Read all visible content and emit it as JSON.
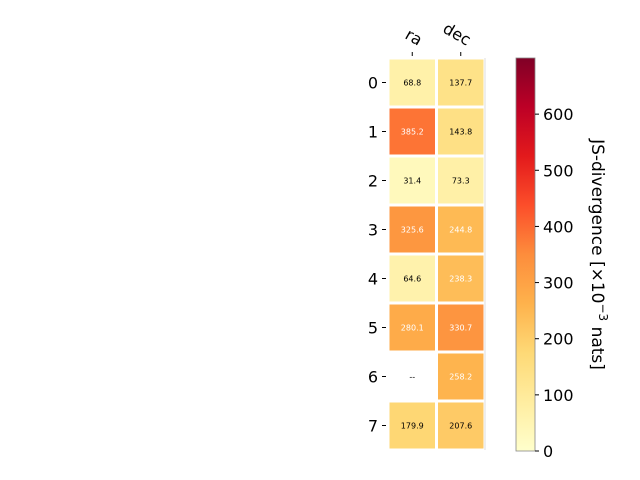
{
  "chart_data": {
    "type": "heatmap",
    "columns": [
      "ra",
      "dec"
    ],
    "rows": [
      "0",
      "1",
      "2",
      "3",
      "4",
      "5",
      "6",
      "7"
    ],
    "values": [
      [
        68.8,
        137.7
      ],
      [
        385.2,
        143.8
      ],
      [
        31.4,
        73.3
      ],
      [
        325.6,
        244.8
      ],
      [
        64.6,
        238.3
      ],
      [
        280.1,
        330.7
      ],
      [
        null,
        258.2
      ],
      [
        179.9,
        207.6
      ]
    ],
    "cell_labels": [
      [
        "68.8",
        "137.7"
      ],
      [
        "385.2",
        "143.8"
      ],
      [
        "31.4",
        "73.3"
      ],
      [
        "325.6",
        "244.8"
      ],
      [
        "64.6",
        "238.3"
      ],
      [
        "280.1",
        "330.7"
      ],
      [
        "--",
        "258.2"
      ],
      [
        "179.9",
        "207.6"
      ]
    ],
    "colorbar": {
      "label_main": "JS-divergence [×10",
      "label_sup": "−3",
      "label_tail": " nats]",
      "range": [
        0,
        700
      ],
      "ticks": [
        0,
        100,
        200,
        300,
        400,
        500,
        600
      ],
      "colormap": "YlOrRd",
      "colors": [
        "#ffffcc",
        "#ffeda0",
        "#fed976",
        "#feb24c",
        "#fd8d3c",
        "#fc4e2a",
        "#e31a1c",
        "#bd0026",
        "#800026"
      ]
    }
  }
}
